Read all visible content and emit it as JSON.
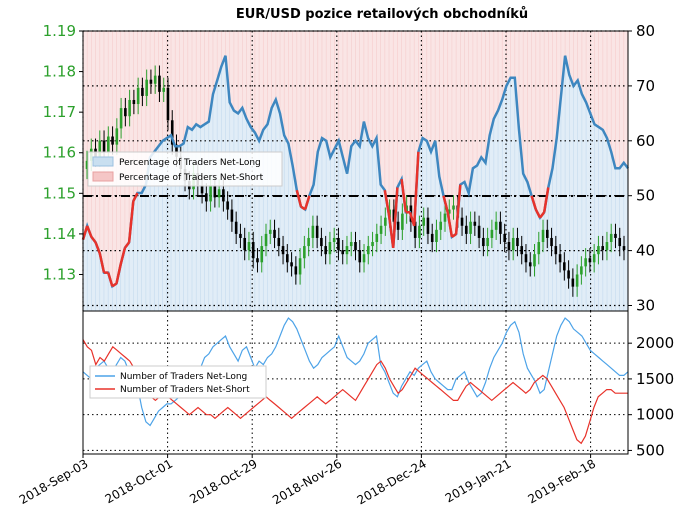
{
  "chart_data": [
    {
      "type": "line",
      "title": "EUR/USD pozice retailových obchodníků",
      "x_ticks": [
        "2018-Sep-03",
        "2018-Oct-01",
        "2018-Oct-29",
        "2018-Nov-26",
        "2018-Dec-24",
        "2019-Jan-21",
        "2019-Feb-18"
      ],
      "left_axis": {
        "ticks": [
          "1.19",
          "1.18",
          "1.17",
          "1.16",
          "1.15",
          "1.14",
          "1.13"
        ],
        "ylim": [
          1.121,
          1.19
        ],
        "color": "#2ca02c"
      },
      "right_axis": {
        "ticks": [
          "80",
          "70",
          "60",
          "50",
          "40",
          "30"
        ],
        "ylim": [
          29,
          80
        ]
      },
      "reference_line": {
        "value": 50,
        "style": "dash-dot",
        "color": "#000000"
      },
      "legend": {
        "placement": "left"
      },
      "series": [
        {
          "name": "Percentage of Traders Net-Long",
          "axis": "right",
          "color": "#1f77b4",
          "fill": "#c9dff0",
          "values": [
            42.0,
            44.5,
            42.5,
            41.5,
            39.5,
            36.0,
            36.0,
            33.5,
            34.0,
            37.5,
            40.5,
            41.5,
            49.0,
            50.5,
            50.5,
            52.0,
            57.0,
            58.0,
            59.0,
            60.0,
            60.5,
            61.0,
            59.0,
            59.0,
            59.5,
            62.5,
            62.0,
            63.0,
            62.5,
            63.0,
            63.5,
            68.5,
            71.0,
            73.5,
            75.5,
            67.0,
            65.5,
            65.0,
            66.0,
            64.0,
            62.5,
            61.5,
            60.0,
            62.0,
            63.0,
            66.0,
            67.5,
            65.0,
            61.0,
            59.5,
            55.5,
            51.0,
            48.0,
            47.5,
            50.0,
            52.0,
            58.0,
            60.5,
            60.0,
            57.0,
            58.5,
            60.0,
            57.0,
            54.0,
            59.0,
            60.0,
            59.0,
            63.5,
            60.5,
            59.0,
            60.5,
            52.0,
            51.0,
            46.5,
            40.5,
            51.5,
            53.0,
            47.0,
            47.0,
            44.5,
            58.0,
            60.5,
            60.0,
            58.0,
            60.0,
            53.5,
            50.0,
            47.0,
            42.5,
            43.0,
            52.0,
            52.5,
            50.5,
            55.0,
            55.5,
            57.0,
            56.0,
            61.0,
            64.0,
            65.5,
            67.5,
            70.0,
            71.5,
            71.5,
            62.0,
            54.0,
            52.5,
            50.0,
            47.5,
            46.0,
            47.0,
            51.5,
            55.0,
            60.5,
            68.0,
            75.5,
            72.0,
            70.0,
            71.0,
            68.5,
            67.0,
            65.0,
            63.0,
            62.5,
            62.0,
            60.5,
            58.0,
            55.0,
            55.0,
            56.0,
            55.0
          ]
        },
        {
          "name": "Percentage of Traders Net-Short",
          "axis": "right",
          "color": "#d62728",
          "fill": "#f5c6c6"
        },
        {
          "name": "EUR/USD",
          "type": "candlestick",
          "axis": "left",
          "up_color": "#2ca02c",
          "down_color": "#000000",
          "close": [
            1.158,
            1.161,
            1.159,
            1.163,
            1.16,
            1.164,
            1.162,
            1.166,
            1.171,
            1.169,
            1.173,
            1.172,
            1.176,
            1.174,
            1.178,
            1.177,
            1.179,
            1.175,
            1.176,
            1.168,
            1.162,
            1.159,
            1.156,
            1.153,
            1.151,
            1.155,
            1.152,
            1.15,
            1.148,
            1.152,
            1.149,
            1.151,
            1.148,
            1.146,
            1.143,
            1.14,
            1.139,
            1.136,
            1.138,
            1.134,
            1.133,
            1.137,
            1.14,
            1.141,
            1.139,
            1.137,
            1.135,
            1.133,
            1.132,
            1.13,
            1.134,
            1.137,
            1.139,
            1.142,
            1.139,
            1.137,
            1.135,
            1.138,
            1.139,
            1.136,
            1.135,
            1.137,
            1.138,
            1.136,
            1.133,
            1.135,
            1.137,
            1.138,
            1.14,
            1.142,
            1.144,
            1.146,
            1.143,
            1.141,
            1.145,
            1.147,
            1.143,
            1.139,
            1.142,
            1.144,
            1.14,
            1.138,
            1.141,
            1.143,
            1.145,
            1.146,
            1.147,
            1.144,
            1.142,
            1.14,
            1.143,
            1.142,
            1.139,
            1.137,
            1.139,
            1.141,
            1.143,
            1.14,
            1.138,
            1.136,
            1.139,
            1.137,
            1.135,
            1.133,
            1.132,
            1.135,
            1.138,
            1.141,
            1.139,
            1.137,
            1.135,
            1.133,
            1.131,
            1.129,
            1.127,
            1.13,
            1.132,
            1.134,
            1.133,
            1.135,
            1.137,
            1.136,
            1.138,
            1.14,
            1.139,
            1.137,
            1.136
          ]
        }
      ]
    },
    {
      "type": "line",
      "right_axis": {
        "ticks": [
          "2000",
          "1500",
          "1000",
          "500"
        ],
        "ylim": [
          450,
          2450
        ]
      },
      "legend": {
        "placement": "left"
      },
      "series": [
        {
          "name": "Number of Traders Net-Long",
          "color": "#4da3e8",
          "values": [
            1600,
            1550,
            1500,
            1650,
            1700,
            1750,
            1650,
            1600,
            1700,
            1800,
            1750,
            1600,
            1500,
            1400,
            1100,
            900,
            850,
            950,
            1050,
            1100,
            1150,
            1150,
            1200,
            1250,
            1300,
            1350,
            1450,
            1550,
            1650,
            1800,
            1850,
            1950,
            2000,
            2050,
            2100,
            1950,
            1850,
            1750,
            1900,
            1950,
            1800,
            1650,
            1750,
            1700,
            1800,
            1850,
            1950,
            2100,
            2250,
            2350,
            2300,
            2200,
            2050,
            1900,
            1750,
            1650,
            1700,
            1800,
            1850,
            1900,
            1950,
            2100,
            1950,
            1800,
            1750,
            1700,
            1750,
            1850,
            2000,
            2050,
            2100,
            1700,
            1600,
            1450,
            1300,
            1250,
            1400,
            1500,
            1600,
            1550,
            1650,
            1700,
            1750,
            1600,
            1500,
            1450,
            1400,
            1350,
            1350,
            1500,
            1550,
            1600,
            1450,
            1350,
            1250,
            1300,
            1450,
            1650,
            1800,
            1900,
            2000,
            2150,
            2250,
            2300,
            2150,
            1850,
            1650,
            1550,
            1450,
            1300,
            1350,
            1600,
            1850,
            2100,
            2250,
            2350,
            2300,
            2200,
            2150,
            2100,
            2000,
            1900,
            1850,
            1800,
            1750,
            1700,
            1650,
            1600,
            1550,
            1550,
            1600
          ]
        },
        {
          "name": "Number of Traders Net-Short",
          "color": "#e8322a",
          "values": [
            2050,
            1950,
            1900,
            1700,
            1800,
            1750,
            1850,
            1950,
            1900,
            1850,
            1800,
            1750,
            1650,
            1550,
            1450,
            1300,
            1250,
            1200,
            1250,
            1300,
            1250,
            1200,
            1150,
            1100,
            1050,
            1000,
            1050,
            1100,
            1050,
            1000,
            1000,
            950,
            1000,
            1050,
            1100,
            1050,
            1000,
            950,
            1000,
            1050,
            1100,
            1150,
            1200,
            1250,
            1200,
            1150,
            1100,
            1050,
            1000,
            950,
            1000,
            1050,
            1100,
            1150,
            1200,
            1250,
            1200,
            1150,
            1200,
            1250,
            1300,
            1350,
            1300,
            1250,
            1200,
            1300,
            1400,
            1500,
            1600,
            1700,
            1750,
            1650,
            1500,
            1400,
            1300,
            1350,
            1450,
            1550,
            1650,
            1600,
            1550,
            1500,
            1450,
            1400,
            1350,
            1300,
            1250,
            1200,
            1200,
            1300,
            1400,
            1450,
            1400,
            1350,
            1300,
            1250,
            1200,
            1250,
            1300,
            1350,
            1400,
            1450,
            1400,
            1350,
            1300,
            1350,
            1450,
            1500,
            1550,
            1500,
            1400,
            1300,
            1200,
            1100,
            950,
            800,
            650,
            600,
            700,
            900,
            1100,
            1250,
            1300,
            1350,
            1350,
            1300,
            1300,
            1300,
            1300
          ]
        }
      ]
    }
  ]
}
